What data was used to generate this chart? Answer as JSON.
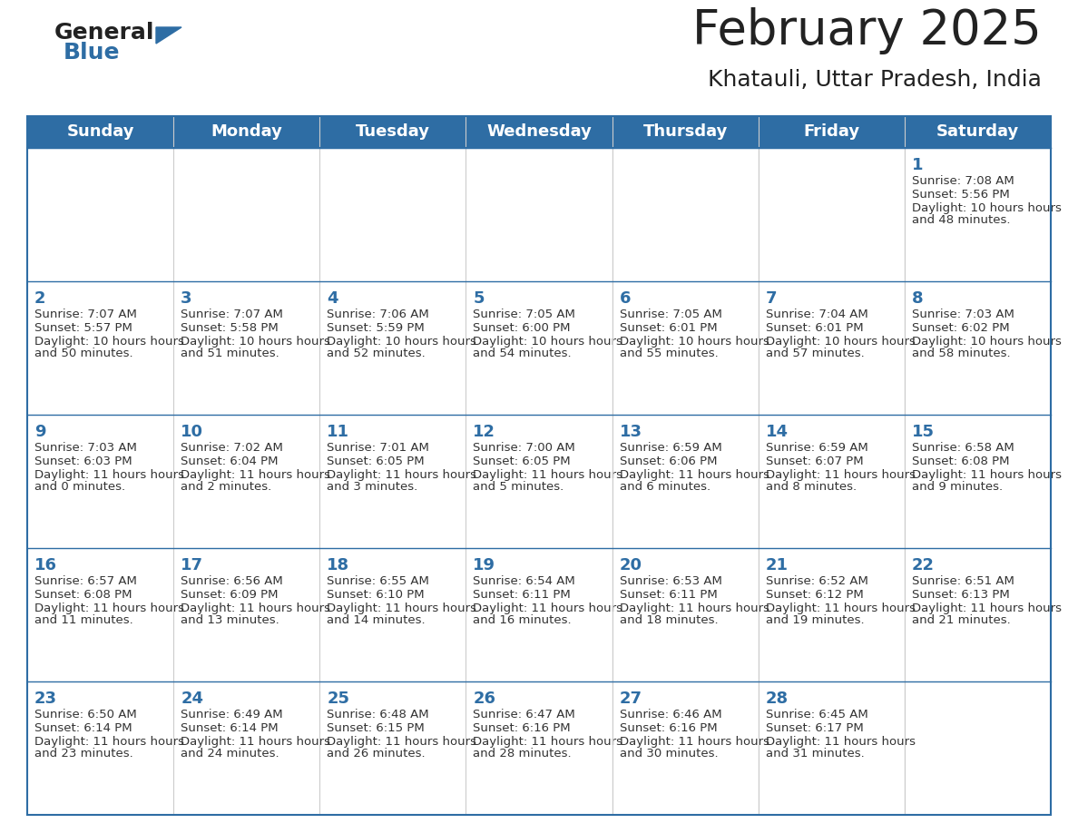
{
  "title": "February 2025",
  "subtitle": "Khatauli, Uttar Pradesh, India",
  "days_of_week": [
    "Sunday",
    "Monday",
    "Tuesday",
    "Wednesday",
    "Thursday",
    "Friday",
    "Saturday"
  ],
  "header_bg": "#2E6DA4",
  "header_text": "#FFFFFF",
  "cell_bg": "#FFFFFF",
  "alt_cell_bg": "#F2F2F2",
  "border_color": "#2E6DA4",
  "day_number_color": "#2E6DA4",
  "text_color": "#333333",
  "title_color": "#222222",
  "logo_general_color": "#222222",
  "logo_blue_color": "#2E6DA4",
  "calendar": [
    [
      null,
      null,
      null,
      null,
      null,
      null,
      {
        "day": 1,
        "sunrise": "7:08 AM",
        "sunset": "5:56 PM",
        "daylight": "10 hours and 48 minutes."
      }
    ],
    [
      {
        "day": 2,
        "sunrise": "7:07 AM",
        "sunset": "5:57 PM",
        "daylight": "10 hours and 50 minutes."
      },
      {
        "day": 3,
        "sunrise": "7:07 AM",
        "sunset": "5:58 PM",
        "daylight": "10 hours and 51 minutes."
      },
      {
        "day": 4,
        "sunrise": "7:06 AM",
        "sunset": "5:59 PM",
        "daylight": "10 hours and 52 minutes."
      },
      {
        "day": 5,
        "sunrise": "7:05 AM",
        "sunset": "6:00 PM",
        "daylight": "10 hours and 54 minutes."
      },
      {
        "day": 6,
        "sunrise": "7:05 AM",
        "sunset": "6:01 PM",
        "daylight": "10 hours and 55 minutes."
      },
      {
        "day": 7,
        "sunrise": "7:04 AM",
        "sunset": "6:01 PM",
        "daylight": "10 hours and 57 minutes."
      },
      {
        "day": 8,
        "sunrise": "7:03 AM",
        "sunset": "6:02 PM",
        "daylight": "10 hours and 58 minutes."
      }
    ],
    [
      {
        "day": 9,
        "sunrise": "7:03 AM",
        "sunset": "6:03 PM",
        "daylight": "11 hours and 0 minutes."
      },
      {
        "day": 10,
        "sunrise": "7:02 AM",
        "sunset": "6:04 PM",
        "daylight": "11 hours and 2 minutes."
      },
      {
        "day": 11,
        "sunrise": "7:01 AM",
        "sunset": "6:05 PM",
        "daylight": "11 hours and 3 minutes."
      },
      {
        "day": 12,
        "sunrise": "7:00 AM",
        "sunset": "6:05 PM",
        "daylight": "11 hours and 5 minutes."
      },
      {
        "day": 13,
        "sunrise": "6:59 AM",
        "sunset": "6:06 PM",
        "daylight": "11 hours and 6 minutes."
      },
      {
        "day": 14,
        "sunrise": "6:59 AM",
        "sunset": "6:07 PM",
        "daylight": "11 hours and 8 minutes."
      },
      {
        "day": 15,
        "sunrise": "6:58 AM",
        "sunset": "6:08 PM",
        "daylight": "11 hours and 9 minutes."
      }
    ],
    [
      {
        "day": 16,
        "sunrise": "6:57 AM",
        "sunset": "6:08 PM",
        "daylight": "11 hours and 11 minutes."
      },
      {
        "day": 17,
        "sunrise": "6:56 AM",
        "sunset": "6:09 PM",
        "daylight": "11 hours and 13 minutes."
      },
      {
        "day": 18,
        "sunrise": "6:55 AM",
        "sunset": "6:10 PM",
        "daylight": "11 hours and 14 minutes."
      },
      {
        "day": 19,
        "sunrise": "6:54 AM",
        "sunset": "6:11 PM",
        "daylight": "11 hours and 16 minutes."
      },
      {
        "day": 20,
        "sunrise": "6:53 AM",
        "sunset": "6:11 PM",
        "daylight": "11 hours and 18 minutes."
      },
      {
        "day": 21,
        "sunrise": "6:52 AM",
        "sunset": "6:12 PM",
        "daylight": "11 hours and 19 minutes."
      },
      {
        "day": 22,
        "sunrise": "6:51 AM",
        "sunset": "6:13 PM",
        "daylight": "11 hours and 21 minutes."
      }
    ],
    [
      {
        "day": 23,
        "sunrise": "6:50 AM",
        "sunset": "6:14 PM",
        "daylight": "11 hours and 23 minutes."
      },
      {
        "day": 24,
        "sunrise": "6:49 AM",
        "sunset": "6:14 PM",
        "daylight": "11 hours and 24 minutes."
      },
      {
        "day": 25,
        "sunrise": "6:48 AM",
        "sunset": "6:15 PM",
        "daylight": "11 hours and 26 minutes."
      },
      {
        "day": 26,
        "sunrise": "6:47 AM",
        "sunset": "6:16 PM",
        "daylight": "11 hours and 28 minutes."
      },
      {
        "day": 27,
        "sunrise": "6:46 AM",
        "sunset": "6:16 PM",
        "daylight": "11 hours and 30 minutes."
      },
      {
        "day": 28,
        "sunrise": "6:45 AM",
        "sunset": "6:17 PM",
        "daylight": "11 hours and 31 minutes."
      },
      null
    ]
  ]
}
